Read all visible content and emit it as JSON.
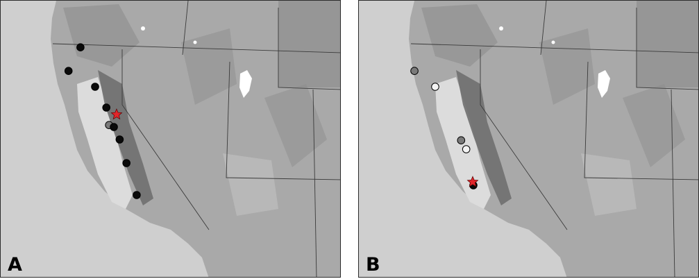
{
  "colors": {
    "ocean": "#cfcfcf",
    "land": "#a9a9a9",
    "highland": "#8a8a8a",
    "lowland": "#c4c4c4",
    "central_valley": "#dcdcdc",
    "sierra": "#6f6f6f",
    "border": "#3a3a3a",
    "lake": "#ffffff",
    "marker_black": "#0a0a0a",
    "marker_gray": "#7a7a7a",
    "marker_white": "#f4f4f4",
    "star_red": "#e0262b"
  },
  "panels": [
    {
      "label": "A",
      "markers": [
        {
          "type": "black",
          "x": 0.234,
          "y": 0.168
        },
        {
          "type": "black",
          "x": 0.199,
          "y": 0.253
        },
        {
          "type": "black",
          "x": 0.277,
          "y": 0.31
        },
        {
          "type": "black",
          "x": 0.31,
          "y": 0.385
        },
        {
          "type": "gray",
          "x": 0.318,
          "y": 0.448
        },
        {
          "type": "black",
          "x": 0.332,
          "y": 0.455
        },
        {
          "type": "black",
          "x": 0.349,
          "y": 0.5
        },
        {
          "type": "black",
          "x": 0.369,
          "y": 0.585
        },
        {
          "type": "black",
          "x": 0.399,
          "y": 0.7
        },
        {
          "type": "star",
          "x": 0.34,
          "y": 0.41
        }
      ]
    },
    {
      "label": "B",
      "markers": [
        {
          "type": "gray",
          "x": 0.163,
          "y": 0.253
        },
        {
          "type": "white",
          "x": 0.224,
          "y": 0.31
        },
        {
          "type": "gray",
          "x": 0.3,
          "y": 0.503
        },
        {
          "type": "white",
          "x": 0.315,
          "y": 0.535
        },
        {
          "type": "black",
          "x": 0.336,
          "y": 0.665
        },
        {
          "type": "star",
          "x": 0.334,
          "y": 0.653
        }
      ]
    }
  ]
}
